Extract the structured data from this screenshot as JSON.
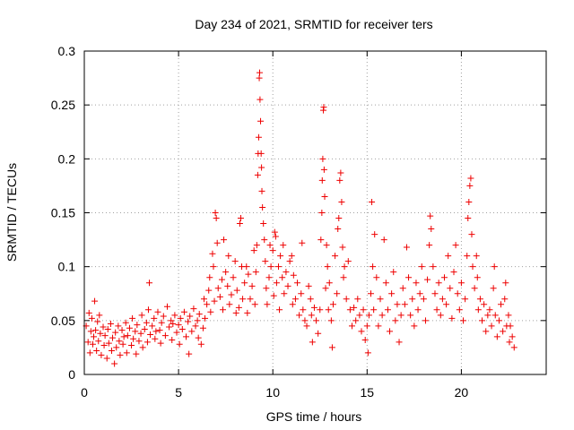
{
  "chart_data": {
    "type": "scatter",
    "title": "Day 234 of 2021, SRMTID for receiver ters",
    "xlabel": "GPS time / hours",
    "ylabel": "SRMTID / TECUs",
    "xlim": [
      0,
      24.5
    ],
    "ylim": [
      0,
      0.3
    ],
    "xticks": [
      0,
      5,
      10,
      15,
      20
    ],
    "xtick_labels": [
      "0",
      "5",
      "10",
      "15",
      "20"
    ],
    "yticks": [
      0,
      0.05,
      0.1,
      0.15,
      0.2,
      0.25,
      0.3
    ],
    "ytick_labels": [
      "0",
      "0.05",
      "0.1",
      "0.15",
      "0.2",
      "0.25",
      "0.3"
    ],
    "grid": true,
    "marker": "plus",
    "color": "#ee0000",
    "series": [
      {
        "name": "SRMTID",
        "points": [
          [
            0.1,
            0.045
          ],
          [
            0.2,
            0.03
          ],
          [
            0.25,
            0.057
          ],
          [
            0.3,
            0.02
          ],
          [
            0.35,
            0.04
          ],
          [
            0.4,
            0.052
          ],
          [
            0.45,
            0.028
          ],
          [
            0.5,
            0.035
          ],
          [
            0.55,
            0.068
          ],
          [
            0.6,
            0.041
          ],
          [
            0.65,
            0.022
          ],
          [
            0.7,
            0.049
          ],
          [
            0.75,
            0.031
          ],
          [
            0.8,
            0.055
          ],
          [
            0.85,
            0.038
          ],
          [
            0.9,
            0.018
          ],
          [
            1.0,
            0.044
          ],
          [
            1.05,
            0.027
          ],
          [
            1.1,
            0.036
          ],
          [
            1.2,
            0.015
          ],
          [
            1.25,
            0.042
          ],
          [
            1.3,
            0.029
          ],
          [
            1.4,
            0.047
          ],
          [
            1.45,
            0.022
          ],
          [
            1.5,
            0.034
          ],
          [
            1.6,
            0.01
          ],
          [
            1.65,
            0.039
          ],
          [
            1.7,
            0.025
          ],
          [
            1.8,
            0.045
          ],
          [
            1.85,
            0.031
          ],
          [
            1.9,
            0.018
          ],
          [
            2.0,
            0.041
          ],
          [
            2.05,
            0.028
          ],
          [
            2.1,
            0.035
          ],
          [
            2.2,
            0.048
          ],
          [
            2.25,
            0.02
          ],
          [
            2.3,
            0.036
          ],
          [
            2.4,
            0.043
          ],
          [
            2.5,
            0.027
          ],
          [
            2.55,
            0.052
          ],
          [
            2.6,
            0.033
          ],
          [
            2.7,
            0.04
          ],
          [
            2.75,
            0.019
          ],
          [
            2.8,
            0.046
          ],
          [
            2.9,
            0.031
          ],
          [
            3.0,
            0.038
          ],
          [
            3.05,
            0.055
          ],
          [
            3.1,
            0.025
          ],
          [
            3.2,
            0.042
          ],
          [
            3.3,
            0.048
          ],
          [
            3.35,
            0.03
          ],
          [
            3.4,
            0.06
          ],
          [
            3.45,
            0.085
          ],
          [
            3.5,
            0.037
          ],
          [
            3.6,
            0.045
          ],
          [
            3.7,
            0.052
          ],
          [
            3.75,
            0.033
          ],
          [
            3.8,
            0.04
          ],
          [
            3.9,
            0.058
          ],
          [
            4.0,
            0.041
          ],
          [
            4.05,
            0.029
          ],
          [
            4.1,
            0.048
          ],
          [
            4.2,
            0.054
          ],
          [
            4.3,
            0.036
          ],
          [
            4.4,
            0.063
          ],
          [
            4.5,
            0.044
          ],
          [
            4.6,
            0.05
          ],
          [
            4.65,
            0.032
          ],
          [
            4.7,
            0.047
          ],
          [
            4.8,
            0.055
          ],
          [
            4.9,
            0.039
          ],
          [
            5.0,
            0.046
          ],
          [
            5.05,
            0.028
          ],
          [
            5.1,
            0.052
          ],
          [
            5.2,
            0.042
          ],
          [
            5.3,
            0.058
          ],
          [
            5.4,
            0.035
          ],
          [
            5.5,
            0.049
          ],
          [
            5.55,
            0.019
          ],
          [
            5.6,
            0.054
          ],
          [
            5.7,
            0.04
          ],
          [
            5.8,
            0.061
          ],
          [
            5.9,
            0.045
          ],
          [
            6.0,
            0.05
          ],
          [
            6.05,
            0.034
          ],
          [
            6.1,
            0.056
          ],
          [
            6.2,
            0.028
          ],
          [
            6.3,
            0.043
          ],
          [
            6.35,
            0.07
          ],
          [
            6.4,
            0.052
          ],
          [
            6.5,
            0.065
          ],
          [
            6.6,
            0.078
          ],
          [
            6.65,
            0.09
          ],
          [
            6.7,
            0.058
          ],
          [
            6.8,
            0.112
          ],
          [
            6.85,
            0.1
          ],
          [
            6.9,
            0.068
          ],
          [
            6.95,
            0.15
          ],
          [
            7.0,
            0.145
          ],
          [
            7.05,
            0.122
          ],
          [
            7.1,
            0.08
          ],
          [
            7.2,
            0.072
          ],
          [
            7.3,
            0.088
          ],
          [
            7.35,
            0.06
          ],
          [
            7.4,
            0.125
          ],
          [
            7.5,
            0.095
          ],
          [
            7.6,
            0.082
          ],
          [
            7.65,
            0.11
          ],
          [
            7.7,
            0.065
          ],
          [
            7.8,
            0.074
          ],
          [
            7.9,
            0.09
          ],
          [
            8.0,
            0.105
          ],
          [
            8.05,
            0.057
          ],
          [
            8.1,
            0.078
          ],
          [
            8.2,
            0.062
          ],
          [
            8.25,
            0.14
          ],
          [
            8.3,
            0.145
          ],
          [
            8.35,
            0.1
          ],
          [
            8.4,
            0.07
          ],
          [
            8.5,
            0.085
          ],
          [
            8.6,
            0.1
          ],
          [
            8.65,
            0.057
          ],
          [
            8.7,
            0.093
          ],
          [
            8.8,
            0.07
          ],
          [
            8.9,
            0.082
          ],
          [
            9.0,
            0.115
          ],
          [
            9.05,
            0.065
          ],
          [
            9.1,
            0.095
          ],
          [
            9.15,
            0.12
          ],
          [
            9.2,
            0.185
          ],
          [
            9.22,
            0.205
          ],
          [
            9.25,
            0.22
          ],
          [
            9.28,
            0.275
          ],
          [
            9.3,
            0.28
          ],
          [
            9.32,
            0.255
          ],
          [
            9.35,
            0.235
          ],
          [
            9.38,
            0.205
          ],
          [
            9.4,
            0.192
          ],
          [
            9.42,
            0.17
          ],
          [
            9.45,
            0.155
          ],
          [
            9.5,
            0.14
          ],
          [
            9.55,
            0.125
          ],
          [
            9.6,
            0.105
          ],
          [
            9.65,
            0.08
          ],
          [
            9.7,
            0.065
          ],
          [
            9.8,
            0.09
          ],
          [
            9.85,
            0.12
          ],
          [
            9.9,
            0.1
          ],
          [
            10.0,
            0.115
          ],
          [
            10.05,
            0.073
          ],
          [
            10.1,
            0.132
          ],
          [
            10.15,
            0.128
          ],
          [
            10.2,
            0.085
          ],
          [
            10.3,
            0.1
          ],
          [
            10.35,
            0.06
          ],
          [
            10.4,
            0.11
          ],
          [
            10.5,
            0.09
          ],
          [
            10.55,
            0.12
          ],
          [
            10.6,
            0.075
          ],
          [
            10.7,
            0.095
          ],
          [
            10.8,
            0.082
          ],
          [
            10.9,
            0.105
          ],
          [
            11.0,
            0.11
          ],
          [
            11.05,
            0.065
          ],
          [
            11.1,
            0.092
          ],
          [
            11.2,
            0.07
          ],
          [
            11.3,
            0.085
          ],
          [
            11.4,
            0.055
          ],
          [
            11.5,
            0.075
          ],
          [
            11.55,
            0.122
          ],
          [
            11.6,
            0.06
          ],
          [
            11.7,
            0.05
          ],
          [
            11.8,
            0.045
          ],
          [
            11.9,
            0.082
          ],
          [
            12.0,
            0.07
          ],
          [
            12.05,
            0.055
          ],
          [
            12.1,
            0.03
          ],
          [
            12.2,
            0.062
          ],
          [
            12.3,
            0.05
          ],
          [
            12.4,
            0.038
          ],
          [
            12.5,
            0.06
          ],
          [
            12.55,
            0.125
          ],
          [
            12.6,
            0.15
          ],
          [
            12.62,
            0.18
          ],
          [
            12.65,
            0.2
          ],
          [
            12.68,
            0.245
          ],
          [
            12.7,
            0.248
          ],
          [
            12.72,
            0.19
          ],
          [
            12.75,
            0.165
          ],
          [
            12.8,
            0.08
          ],
          [
            12.85,
            0.12
          ],
          [
            12.9,
            0.1
          ],
          [
            12.95,
            0.06
          ],
          [
            13.0,
            0.085
          ],
          [
            13.1,
            0.05
          ],
          [
            13.15,
            0.025
          ],
          [
            13.2,
            0.065
          ],
          [
            13.3,
            0.11
          ],
          [
            13.4,
            0.075
          ],
          [
            13.45,
            0.135
          ],
          [
            13.5,
            0.145
          ],
          [
            13.55,
            0.18
          ],
          [
            13.6,
            0.187
          ],
          [
            13.65,
            0.16
          ],
          [
            13.7,
            0.118
          ],
          [
            13.75,
            0.09
          ],
          [
            13.8,
            0.1
          ],
          [
            13.9,
            0.07
          ],
          [
            14.0,
            0.105
          ],
          [
            14.1,
            0.06
          ],
          [
            14.2,
            0.045
          ],
          [
            14.3,
            0.062
          ],
          [
            14.4,
            0.05
          ],
          [
            14.5,
            0.07
          ],
          [
            14.6,
            0.055
          ],
          [
            14.7,
            0.04
          ],
          [
            14.8,
            0.06
          ],
          [
            14.9,
            0.032
          ],
          [
            15.0,
            0.045
          ],
          [
            15.05,
            0.02
          ],
          [
            15.1,
            0.055
          ],
          [
            15.2,
            0.075
          ],
          [
            15.25,
            0.16
          ],
          [
            15.3,
            0.1
          ],
          [
            15.35,
            0.06
          ],
          [
            15.4,
            0.13
          ],
          [
            15.5,
            0.09
          ],
          [
            15.6,
            0.045
          ],
          [
            15.7,
            0.07
          ],
          [
            15.8,
            0.055
          ],
          [
            15.9,
            0.125
          ],
          [
            16.0,
            0.085
          ],
          [
            16.1,
            0.06
          ],
          [
            16.2,
            0.04
          ],
          [
            16.3,
            0.075
          ],
          [
            16.4,
            0.095
          ],
          [
            16.5,
            0.05
          ],
          [
            16.6,
            0.065
          ],
          [
            16.7,
            0.03
          ],
          [
            16.8,
            0.055
          ],
          [
            16.9,
            0.08
          ],
          [
            17.0,
            0.065
          ],
          [
            17.1,
            0.118
          ],
          [
            17.2,
            0.09
          ],
          [
            17.3,
            0.055
          ],
          [
            17.4,
            0.07
          ],
          [
            17.5,
            0.045
          ],
          [
            17.6,
            0.085
          ],
          [
            17.7,
            0.06
          ],
          [
            17.8,
            0.075
          ],
          [
            17.9,
            0.1
          ],
          [
            18.0,
            0.07
          ],
          [
            18.1,
            0.05
          ],
          [
            18.2,
            0.088
          ],
          [
            18.3,
            0.12
          ],
          [
            18.35,
            0.147
          ],
          [
            18.4,
            0.135
          ],
          [
            18.5,
            0.1
          ],
          [
            18.6,
            0.075
          ],
          [
            18.7,
            0.06
          ],
          [
            18.8,
            0.085
          ],
          [
            18.9,
            0.055
          ],
          [
            19.0,
            0.07
          ],
          [
            19.1,
            0.09
          ],
          [
            19.2,
            0.065
          ],
          [
            19.3,
            0.11
          ],
          [
            19.4,
            0.08
          ],
          [
            19.5,
            0.052
          ],
          [
            19.6,
            0.095
          ],
          [
            19.7,
            0.12
          ],
          [
            19.8,
            0.075
          ],
          [
            19.9,
            0.06
          ],
          [
            20.0,
            0.085
          ],
          [
            20.1,
            0.05
          ],
          [
            20.2,
            0.07
          ],
          [
            20.3,
            0.11
          ],
          [
            20.35,
            0.145
          ],
          [
            20.4,
            0.16
          ],
          [
            20.45,
            0.175
          ],
          [
            20.5,
            0.182
          ],
          [
            20.55,
            0.13
          ],
          [
            20.6,
            0.1
          ],
          [
            20.7,
            0.08
          ],
          [
            20.8,
            0.11
          ],
          [
            20.85,
            0.09
          ],
          [
            20.9,
            0.06
          ],
          [
            21.0,
            0.07
          ],
          [
            21.1,
            0.05
          ],
          [
            21.2,
            0.065
          ],
          [
            21.3,
            0.04
          ],
          [
            21.4,
            0.055
          ],
          [
            21.5,
            0.06
          ],
          [
            21.6,
            0.045
          ],
          [
            21.7,
            0.08
          ],
          [
            21.75,
            0.1
          ],
          [
            21.8,
            0.055
          ],
          [
            21.9,
            0.035
          ],
          [
            22.0,
            0.05
          ],
          [
            22.1,
            0.065
          ],
          [
            22.2,
            0.04
          ],
          [
            22.3,
            0.07
          ],
          [
            22.35,
            0.085
          ],
          [
            22.4,
            0.045
          ],
          [
            22.5,
            0.055
          ],
          [
            22.55,
            0.03
          ],
          [
            22.6,
            0.045
          ],
          [
            22.7,
            0.035
          ],
          [
            22.8,
            0.025
          ]
        ]
      }
    ]
  }
}
